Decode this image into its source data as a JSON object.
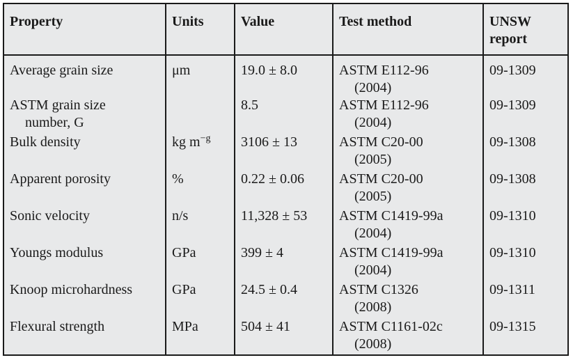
{
  "headers": [
    "Property",
    "Units",
    "Value",
    "Test method",
    "UNSW report"
  ],
  "header_split": {
    "last_line1": "UNSW",
    "last_line2": "report"
  },
  "rows": [
    {
      "property": [
        "Average grain size",
        ""
      ],
      "units": "μm",
      "value": "19.0 ± 8.0",
      "method": [
        "ASTM E112-96",
        "(2004)"
      ],
      "report": "09-1309"
    },
    {
      "property": [
        "ASTM grain size",
        "number, G"
      ],
      "units": "",
      "value": "8.5",
      "method": [
        "ASTM E112-96",
        "(2004)"
      ],
      "report": "09-1309"
    },
    {
      "property": [
        "Bulk density",
        ""
      ],
      "units": "kg m−g",
      "value": "3106 ± 13",
      "method": [
        "ASTM C20-00",
        "(2005)"
      ],
      "report": "09-1308"
    },
    {
      "property": [
        "Apparent porosity",
        ""
      ],
      "units": "%",
      "value": "0.22 ± 0.06",
      "method": [
        "ASTM C20-00",
        "(2005)"
      ],
      "report": "09-1308"
    },
    {
      "property": [
        "Sonic velocity",
        ""
      ],
      "units": "n/s",
      "value": "11,328 ± 53",
      "method": [
        "ASTM C1419-99a",
        "(2004)"
      ],
      "report": "09-1310"
    },
    {
      "property": [
        "Youngs modulus",
        ""
      ],
      "units": "GPa",
      "value": "399 ± 4",
      "method": [
        "ASTM C1419-99a",
        "(2004)"
      ],
      "report": "09-1310"
    },
    {
      "property": [
        "Knoop microhardness",
        ""
      ],
      "units": "GPa",
      "value": "24.5 ± 0.4",
      "method": [
        "ASTM C1326",
        "(2008)"
      ],
      "report": "09-1311"
    },
    {
      "property": [
        "Flexural strength",
        ""
      ],
      "units": "MPa",
      "value": "504 ± 41",
      "method": [
        "ASTM C1161-02c",
        "(2008)"
      ],
      "report": "09-1315"
    }
  ],
  "units_parts": {
    "kg_base": "kg m",
    "kg_sup": "−g"
  }
}
